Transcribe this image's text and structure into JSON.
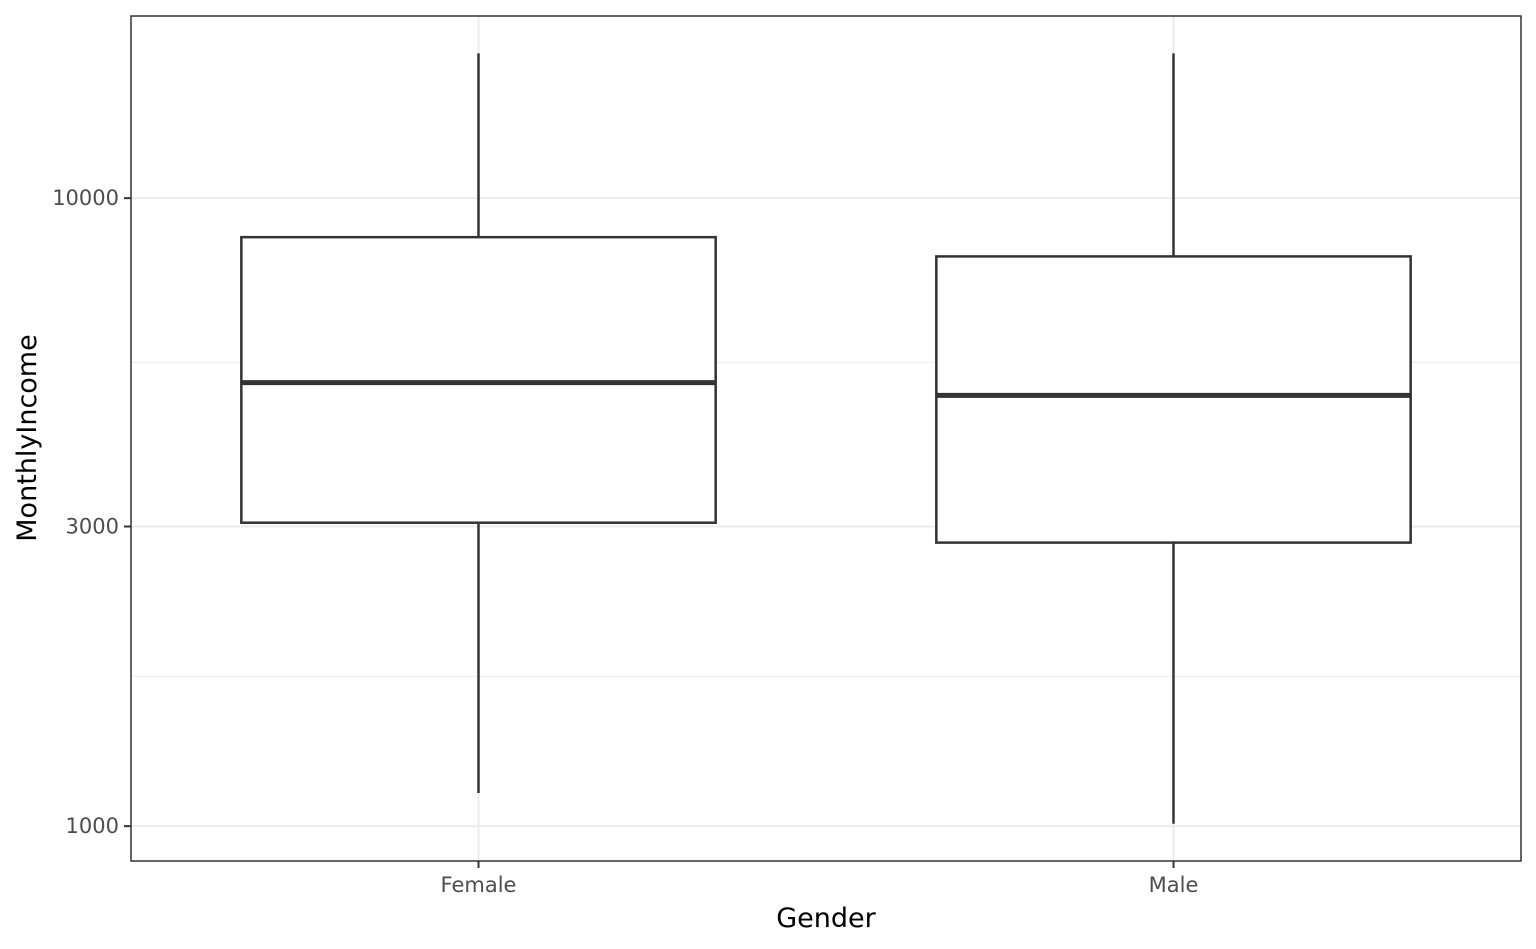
{
  "chart_data": {
    "type": "boxplot",
    "xlabel": "Gender",
    "ylabel": "MonthlyIncome",
    "y_scale": "log10",
    "ylim": [
      880,
      19500
    ],
    "y_ticks": [
      1000,
      3000,
      10000
    ],
    "y_tick_labels": [
      "1000",
      "3000",
      "10000"
    ],
    "y_minor_ticks": [
      1732,
      5477
    ],
    "grid": true,
    "categories": [
      "Female",
      "Male"
    ],
    "boxes": [
      {
        "category": "Female",
        "whisker_low": 1129,
        "q1": 3042,
        "median": 5085,
        "q3": 8667,
        "whisker_high": 17000
      },
      {
        "category": "Male",
        "whisker_low": 1009,
        "q1": 2828,
        "median": 4852,
        "q3": 8076,
        "whisker_high": 17000
      }
    ],
    "colors": {
      "box_stroke": "#333333",
      "grid": "#ebebeb",
      "panel_border": "#333333",
      "box_fill": "#ffffff"
    }
  }
}
